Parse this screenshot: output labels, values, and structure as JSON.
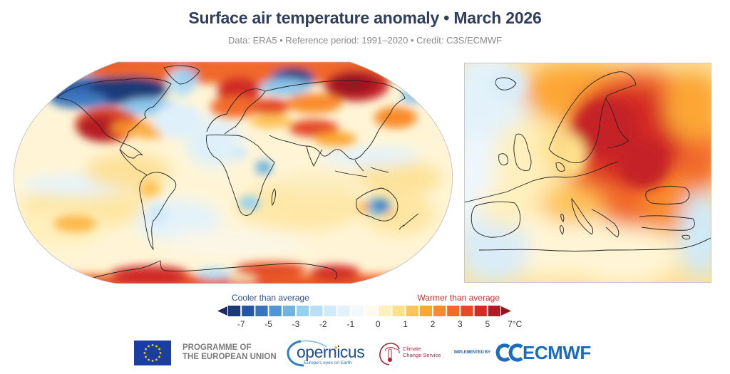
{
  "header": {
    "title": "Surface air temperature anomaly • March 2026",
    "subtitle": "Data: ERA5 • Reference period: 1991–2020 • Credit: C3S/ECMWF"
  },
  "maps": {
    "world": {
      "name": "Global map",
      "projection": "Robinson"
    },
    "europe": {
      "name": "Europe inset"
    }
  },
  "legend": {
    "cool_label": "Cooler than average",
    "warm_label": "Warmer than average",
    "cool_color": "#2f4f8f",
    "warm_color": "#c9302c",
    "bins": [
      "#1c3a78",
      "#2255a5",
      "#3674bc",
      "#4f96d2",
      "#70b4e0",
      "#95d1f0",
      "#b6e0f5",
      "#cfeaf8",
      "#e3f2fa",
      "#f2f9fd",
      "#fffbea",
      "#fff0bd",
      "#fee08b",
      "#fec359",
      "#fca636",
      "#f98b2c",
      "#f26b29",
      "#e44a26",
      "#d42a26",
      "#b51b26"
    ],
    "under_color": "#1a2b5e",
    "over_color": "#9a1420",
    "ticks": [
      "-7",
      "-5",
      "-3",
      "-2",
      "-1",
      "0",
      "1",
      "2",
      "3",
      "5",
      "7°C"
    ],
    "unit": "°C"
  },
  "logos": {
    "eu_text_line1": "PROGRAMME OF",
    "eu_text_line2": "THE EUROPEAN UNION",
    "copernicus_word": "opernicus",
    "copernicus_tagline": "Europe's eyes on Earth",
    "c3s_line1": "Climate",
    "c3s_line2": "Change Service",
    "implemented_by": "IMPLEMENTED BY",
    "ecmwf": "ECMWF"
  }
}
